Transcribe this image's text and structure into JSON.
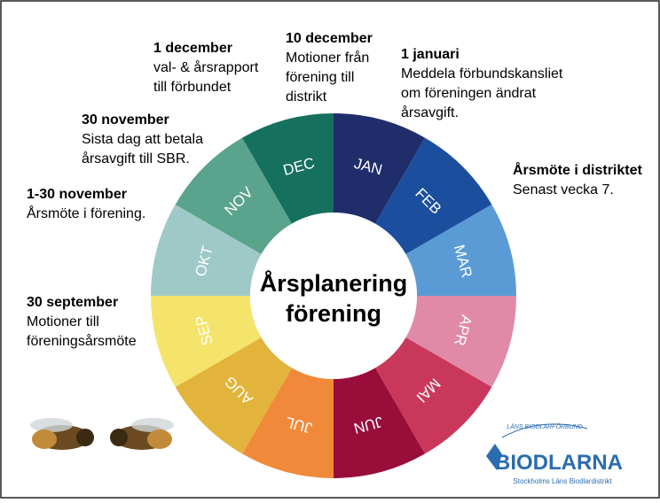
{
  "wheel": {
    "title_lines": [
      "Årsplanering",
      "förening"
    ],
    "months": [
      {
        "label": "JAN",
        "color": "#1f2d6b"
      },
      {
        "label": "FEB",
        "color": "#1b4f9e"
      },
      {
        "label": "MAR",
        "color": "#5b9bd5"
      },
      {
        "label": "APR",
        "color": "#e08aa7"
      },
      {
        "label": "MAI",
        "color": "#c9385b"
      },
      {
        "label": "JUN",
        "color": "#990d3b"
      },
      {
        "label": "JUL",
        "color": "#f08a3a"
      },
      {
        "label": "AUG",
        "color": "#e2b43b"
      },
      {
        "label": "SEP",
        "color": "#f5e46c"
      },
      {
        "label": "OKT",
        "color": "#9ec9c6"
      },
      {
        "label": "NOV",
        "color": "#5aa38d"
      },
      {
        "label": "DEC",
        "color": "#16705e"
      }
    ]
  },
  "annotations": [
    {
      "title": "1 december",
      "lines": [
        "val- & årsrapport",
        "till förbundet"
      ]
    },
    {
      "title": "10 december",
      "lines": [
        "Motioner från",
        "förening till",
        "distrikt"
      ]
    },
    {
      "title": "1 januari",
      "lines": [
        "Meddela förbundskansliet",
        "om föreningen ändrat",
        "årsavgift."
      ]
    },
    {
      "title": "30 november",
      "lines": [
        "Sista dag att betala",
        "årsavgift till SBR."
      ]
    },
    {
      "title": "Årsmöte i distriktet",
      "lines": [
        "Senast vecka 7."
      ]
    },
    {
      "title": "1-30 november",
      "lines": [
        "Årsmöte i förening."
      ]
    },
    {
      "title": "30 september",
      "lines": [
        "Motioner till",
        "föreningsårsmöte"
      ]
    }
  ],
  "logo": {
    "arc_text": "LÄNS BIODLARFÖRBUND",
    "name": "BIODLARNA",
    "subtitle": "Stockholms Läns Biodlardistrikt"
  }
}
